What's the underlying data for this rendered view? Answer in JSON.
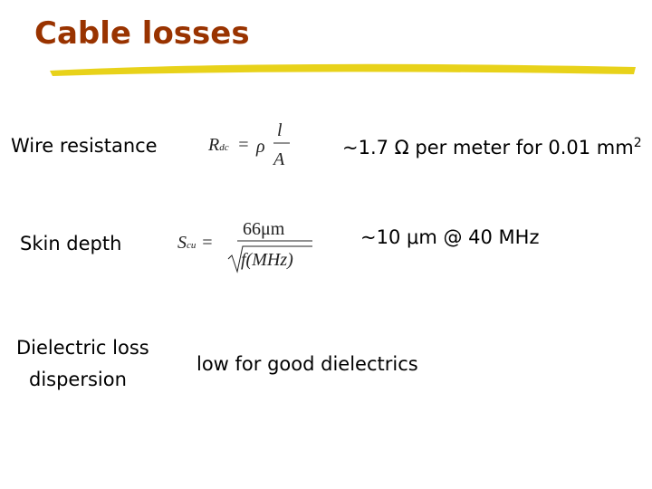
{
  "title": "Cable losses",
  "rows": [
    {
      "label": [
        "Wire resistance"
      ],
      "formula": {
        "lhs": "R",
        "lhs_sub": "dc",
        "equals": "=",
        "factor": "ρ",
        "numerator": "l",
        "denominator": "A"
      },
      "note": "~1.7 Ω per meter for 0.01 mm",
      "note_sup": "2"
    },
    {
      "label": [
        "Skin depth"
      ],
      "formula": {
        "lhs": "S",
        "lhs_sub": "cu",
        "equals": "=",
        "numerator": "66μm",
        "denominator": "f(MHz)"
      },
      "note": "~10 μm @ 40 MHz"
    },
    {
      "label": [
        "Dielectric loss",
        "dispersion"
      ],
      "note": "low for good dielectrics"
    }
  ]
}
